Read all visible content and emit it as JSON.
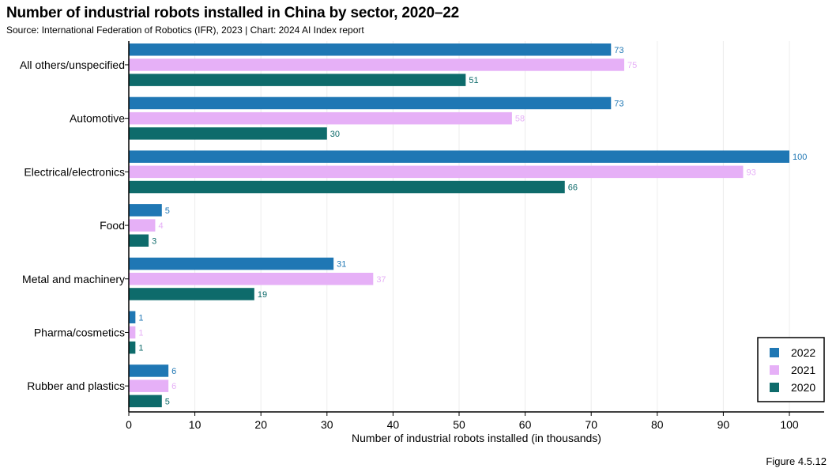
{
  "header": {
    "title": "Number of industrial robots installed in China by sector, 2020–22",
    "subtitle": "Source: International Federation of Robotics (IFR), 2023 | Chart: 2024 AI Index report"
  },
  "footer": {
    "figure_label": "Figure 4.5.12"
  },
  "colors": {
    "2022": "#1f77b4",
    "2021": "#e6b0f7",
    "2020": "#0e6b6b",
    "grid": "#ececec"
  },
  "chart_data": {
    "type": "bar",
    "orientation": "horizontal",
    "title": "Number of industrial robots installed in China by sector, 2020–22",
    "xlabel": "Number of industrial robots installed (in thousands)",
    "ylabel": "",
    "xlim": [
      0,
      105
    ],
    "xticks": [
      0,
      10,
      20,
      30,
      40,
      50,
      60,
      70,
      80,
      90,
      100
    ],
    "grid": true,
    "legend_position": "bottom-right",
    "categories": [
      "All others/unspecified",
      "Automotive",
      "Electrical/electronics",
      "Food",
      "Metal and machinery",
      "Pharma/cosmetics",
      "Rubber and plastics"
    ],
    "series": [
      {
        "name": "2022",
        "color": "#1f77b4",
        "values": [
          73,
          73,
          100,
          5,
          31,
          1,
          6
        ]
      },
      {
        "name": "2021",
        "color": "#e6b0f7",
        "values": [
          75,
          58,
          93,
          4,
          37,
          1,
          6
        ]
      },
      {
        "name": "2020",
        "color": "#0e6b6b",
        "values": [
          51,
          30,
          66,
          3,
          19,
          1,
          5
        ]
      }
    ]
  }
}
